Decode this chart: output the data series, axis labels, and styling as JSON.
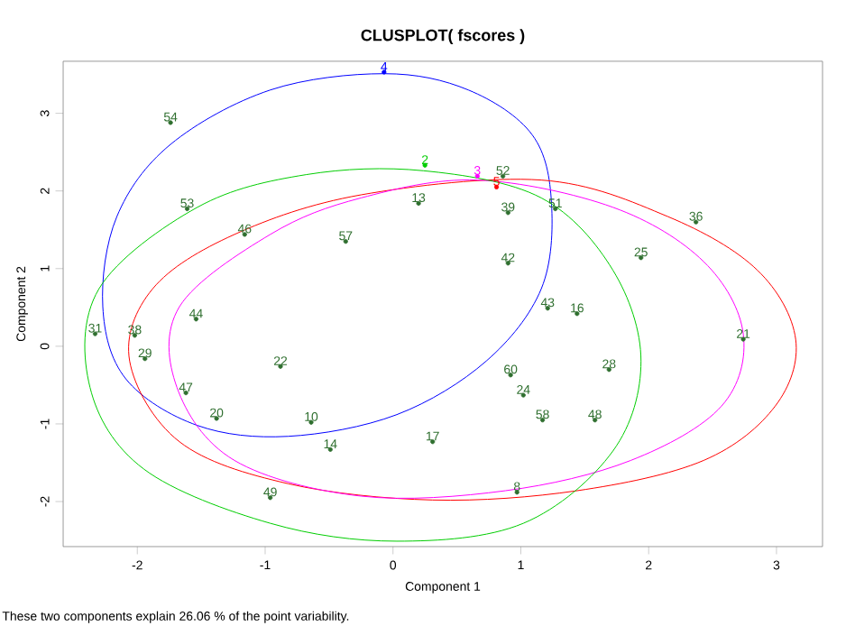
{
  "chart_data": {
    "type": "scatter",
    "title": "CLUSPLOT( fscores )",
    "xlabel": "Component 1",
    "ylabel": "Component 2",
    "annotations": [
      "These two components explain 26.06 % of the point variability.",
      {
        "text": "54",
        "x": -1.74,
        "y": 2.88
      },
      {
        "text": "53",
        "x": -1.61,
        "y": 1.77
      },
      {
        "text": "46",
        "x": -1.16,
        "y": 1.44
      },
      {
        "text": "57",
        "x": -0.37,
        "y": 1.35
      },
      {
        "text": "13",
        "x": 0.2,
        "y": 1.84
      },
      {
        "text": "2",
        "x": 0.25,
        "y": 2.33
      },
      {
        "text": "3",
        "x": 0.66,
        "y": 2.19
      },
      {
        "text": "52",
        "x": 0.86,
        "y": 2.19
      },
      {
        "text": "5",
        "x": 0.81,
        "y": 2.05
      },
      {
        "text": "51",
        "x": 1.27,
        "y": 1.77
      },
      {
        "text": "39",
        "x": 0.9,
        "y": 1.72
      },
      {
        "text": "36",
        "x": 2.37,
        "y": 1.6
      },
      {
        "text": "25",
        "x": 1.94,
        "y": 1.14
      },
      {
        "text": "42",
        "x": 0.9,
        "y": 1.07
      },
      {
        "text": "21",
        "x": 2.74,
        "y": 0.09
      },
      {
        "text": "44",
        "x": -1.54,
        "y": 0.35
      },
      {
        "text": "31",
        "x": -2.33,
        "y": 0.16
      },
      {
        "text": "38",
        "x": -2.02,
        "y": 0.14
      },
      {
        "text": "29",
        "x": -1.94,
        "y": -0.16
      },
      {
        "text": "47",
        "x": -1.62,
        "y": -0.6
      },
      {
        "text": "22",
        "x": -0.88,
        "y": -0.26
      },
      {
        "text": "10",
        "x": -0.64,
        "y": -0.98
      },
      {
        "text": "43",
        "x": 1.21,
        "y": 0.49
      },
      {
        "text": "16",
        "x": 1.44,
        "y": 0.42
      },
      {
        "text": "60",
        "x": 0.92,
        "y": -0.37
      },
      {
        "text": "24",
        "x": 1.02,
        "y": -0.63
      },
      {
        "text": "17",
        "x": 0.31,
        "y": -1.23
      },
      {
        "text": "58",
        "x": 1.17,
        "y": -0.95
      },
      {
        "text": "28",
        "x": 1.69,
        "y": -0.3
      },
      {
        "text": "48",
        "x": 1.58,
        "y": -0.95
      },
      {
        "text": "8",
        "x": 0.97,
        "y": -1.88
      },
      {
        "text": "49",
        "x": -0.96,
        "y": -1.95
      },
      {
        "text": "14",
        "x": -0.49,
        "y": -1.33
      },
      {
        "text": "20",
        "x": -1.38,
        "y": -0.93
      },
      {
        "text": "4",
        "x": -0.07,
        "y": 3.53
      }
    ],
    "xlim": [
      -2.58,
      3.36
    ],
    "ylim": [
      -2.58,
      3.67
    ],
    "xticks": [
      -2,
      -1,
      0,
      1,
      2,
      3
    ],
    "yticks": [
      -2,
      -1,
      0,
      1,
      2,
      3
    ],
    "series": [
      {
        "x": [
          -1.74,
          -1.61,
          -1.16,
          -0.37,
          0.2,
          0.25,
          0.66,
          0.86,
          0.81,
          1.27,
          0.9,
          2.37,
          1.94,
          0.9,
          2.74,
          -1.54,
          -2.33,
          -2.02,
          -1.94,
          -1.62,
          -0.88,
          -0.64,
          1.21,
          1.44,
          0.92,
          1.02,
          0.31,
          1.17,
          1.69,
          1.58,
          0.97,
          -0.96,
          -0.49,
          -1.38,
          -0.07
        ],
        "values": [
          2.88,
          1.77,
          1.44,
          1.35,
          1.84,
          2.33,
          2.19,
          2.19,
          2.05,
          1.77,
          1.72,
          1.6,
          1.14,
          1.07,
          0.09,
          0.35,
          0.16,
          0.14,
          -0.16,
          -0.6,
          -0.26,
          -0.98,
          0.49,
          0.42,
          -0.37,
          -0.63,
          -1.23,
          -0.95,
          -0.3,
          -0.95,
          -1.88,
          -1.95,
          -1.33,
          -0.93,
          3.53
        ],
        "colors": [
          "#2f6f2f",
          "#2f6f2f",
          "#2f6f2f",
          "#2f6f2f",
          "#2f6f2f",
          "#00cd00",
          "#ff00ff",
          "#2f6f2f",
          "#ff0000",
          "#2f6f2f",
          "#2f6f2f",
          "#2f6f2f",
          "#2f6f2f",
          "#2f6f2f",
          "#2f6f2f",
          "#2f6f2f",
          "#2f6f2f",
          "#2f6f2f",
          "#2f6f2f",
          "#2f6f2f",
          "#2f6f2f",
          "#2f6f2f",
          "#2f6f2f",
          "#2f6f2f",
          "#2f6f2f",
          "#2f6f2f",
          "#2f6f2f",
          "#2f6f2f",
          "#2f6f2f",
          "#2f6f2f",
          "#2f6f2f",
          "#2f6f2f",
          "#2f6f2f",
          "#2f6f2f",
          "#0000ff"
        ]
      }
    ]
  }
}
